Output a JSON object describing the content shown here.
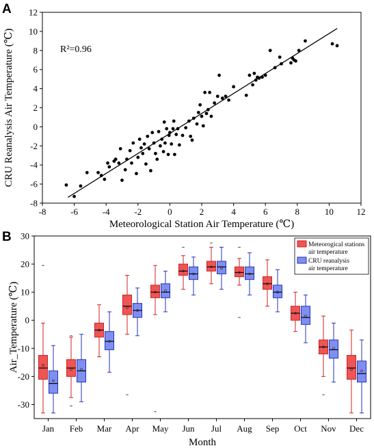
{
  "chart_data": [
    {
      "panel": "A",
      "type": "scatter",
      "title": "",
      "xlabel": "Meteorological Station Air Temperature (℃)",
      "ylabel": "CRU Reanalysis Air Temperature (℃)",
      "xlim": [
        -8,
        12
      ],
      "ylim": [
        -8,
        12
      ],
      "xticks": [
        -8,
        -6,
        -4,
        -2,
        0,
        2,
        4,
        6,
        8,
        10,
        12
      ],
      "yticks": [
        -8,
        -6,
        -4,
        -2,
        0,
        2,
        4,
        6,
        8,
        10,
        12
      ],
      "annotation": "R²=0.96",
      "fit_line": {
        "x": [
          -6.4,
          10.5
        ],
        "y": [
          -7.4,
          10.3
        ]
      },
      "points": [
        [
          -6.5,
          -6.1
        ],
        [
          -6.0,
          -7.3
        ],
        [
          -5.6,
          -6.2
        ],
        [
          -5.2,
          -4.8
        ],
        [
          -4.5,
          -4.8
        ],
        [
          -4.3,
          -5.1
        ],
        [
          -4.1,
          -5.5
        ],
        [
          -3.9,
          -3.8
        ],
        [
          -3.8,
          -4.2
        ],
        [
          -3.5,
          -3.6
        ],
        [
          -3.4,
          -3.4
        ],
        [
          -3.2,
          -3.8
        ],
        [
          -3.1,
          -2.3
        ],
        [
          -3.0,
          -5.6
        ],
        [
          -2.8,
          -4.5
        ],
        [
          -2.7,
          -3.4
        ],
        [
          -2.5,
          -2.5
        ],
        [
          -2.4,
          -3.8
        ],
        [
          -2.3,
          -1.7
        ],
        [
          -2.1,
          -4.9
        ],
        [
          -2.0,
          -3.2
        ],
        [
          -1.9,
          -1.3
        ],
        [
          -1.8,
          -2.2
        ],
        [
          -1.7,
          -2.8
        ],
        [
          -1.6,
          -1.8
        ],
        [
          -1.5,
          -3.9
        ],
        [
          -1.4,
          -1.0
        ],
        [
          -1.3,
          -2.3
        ],
        [
          -1.2,
          -4.6
        ],
        [
          -1.1,
          -0.6
        ],
        [
          -1.0,
          -1.7
        ],
        [
          -0.9,
          -2.8
        ],
        [
          -0.8,
          -3.4
        ],
        [
          -0.7,
          -0.5
        ],
        [
          -0.6,
          -2.0
        ],
        [
          -0.5,
          -1.3
        ],
        [
          -0.4,
          -2.6
        ],
        [
          -0.35,
          0.5
        ],
        [
          -0.3,
          -1.7
        ],
        [
          -0.2,
          -0.2
        ],
        [
          -0.1,
          -2.9
        ],
        [
          -0.05,
          -0.9
        ],
        [
          0.0,
          -0.6
        ],
        [
          0.1,
          -1.8
        ],
        [
          0.2,
          -0.2
        ],
        [
          0.25,
          0.6
        ],
        [
          0.3,
          -2.9
        ],
        [
          0.4,
          -0.8
        ],
        [
          0.5,
          -0.2
        ],
        [
          0.6,
          -1.9
        ],
        [
          0.8,
          -0.9
        ],
        [
          1.0,
          -0.1
        ],
        [
          1.2,
          0.6
        ],
        [
          1.3,
          -1.0
        ],
        [
          1.4,
          -1.4
        ],
        [
          1.5,
          0.9
        ],
        [
          1.7,
          0.3
        ],
        [
          1.8,
          1.5
        ],
        [
          1.9,
          2.3
        ],
        [
          2.0,
          1.1
        ],
        [
          2.1,
          0.1
        ],
        [
          2.2,
          3.6
        ],
        [
          2.3,
          1.4
        ],
        [
          2.4,
          1.8
        ],
        [
          2.5,
          3.6
        ],
        [
          2.6,
          1.1
        ],
        [
          2.8,
          2.5
        ],
        [
          3.0,
          3.2
        ],
        [
          3.1,
          5.4
        ],
        [
          3.3,
          3.0
        ],
        [
          3.5,
          3.2
        ],
        [
          3.7,
          2.8
        ],
        [
          4.0,
          4.2
        ],
        [
          4.8,
          3.3
        ],
        [
          5.0,
          5.4
        ],
        [
          5.2,
          4.4
        ],
        [
          5.3,
          5.6
        ],
        [
          5.4,
          4.9
        ],
        [
          5.5,
          5.2
        ],
        [
          5.6,
          5.1
        ],
        [
          5.8,
          5.2
        ],
        [
          6.0,
          5.4
        ],
        [
          6.3,
          8.0
        ],
        [
          6.6,
          6.2
        ],
        [
          6.9,
          7.3
        ],
        [
          7.0,
          6.6
        ],
        [
          7.6,
          6.7
        ],
        [
          7.7,
          7.2
        ],
        [
          7.8,
          7.0
        ],
        [
          7.9,
          6.9
        ],
        [
          8.1,
          8.0
        ],
        [
          8.5,
          9.0
        ],
        [
          10.2,
          8.7
        ],
        [
          10.5,
          8.5
        ]
      ]
    },
    {
      "panel": "B",
      "type": "box",
      "title": "",
      "xlabel": "Month",
      "ylabel": "Air_Temperature (℃)",
      "ylim": [
        -35,
        30
      ],
      "yticks": [
        -30,
        -20,
        -10,
        0,
        10,
        20,
        30
      ],
      "categories": [
        "Jan",
        "Feb",
        "Mar",
        "Apr",
        "May",
        "Jun",
        "Jul",
        "Aug",
        "Sep",
        "Oct",
        "Nov",
        "Dec"
      ],
      "legend": {
        "position": "top-right"
      },
      "colors": {
        "met": "#ee5555",
        "met_edge": "#cc2222",
        "cru": "#7f8ff0",
        "cru_edge": "#2233bb"
      },
      "series": [
        {
          "name": "Meteorogical stations air temperature",
          "legend_lines": [
            "Meteorogical stations",
            "air temperature"
          ],
          "boxes": [
            {
              "min": -33,
              "q1": -21,
              "median": -17,
              "mean": -16,
              "q3": -12.5,
              "max": -1,
              "outliers": [
                19.5
              ]
            },
            {
              "min": -27.5,
              "q1": -20,
              "median": -17,
              "mean": -17.5,
              "q3": -14,
              "max": -6,
              "outliers": [
                -30.5,
                -5.5
              ]
            },
            {
              "min": -13,
              "q1": -6,
              "median": -3.5,
              "mean": -3.5,
              "q3": -1,
              "max": 5.5,
              "outliers": []
            },
            {
              "min": -5,
              "q1": 2,
              "median": 5,
              "mean": 4.5,
              "q3": 9,
              "max": 16,
              "outliers": [
                -26.5
              ]
            },
            {
              "min": 2,
              "q1": 8,
              "median": 10,
              "mean": 10,
              "q3": 12.5,
              "max": 19.5,
              "outliers": [
                -32.5
              ]
            },
            {
              "min": 11,
              "q1": 16,
              "median": 17.5,
              "mean": 17.5,
              "q3": 20,
              "max": 23,
              "outliers": [
                26
              ]
            },
            {
              "min": 13,
              "q1": 17.5,
              "median": 19,
              "mean": 19,
              "q3": 21,
              "max": 26,
              "outliers": [
                27.5
              ]
            },
            {
              "min": 12.5,
              "q1": 15.5,
              "median": 17,
              "mean": 17,
              "q3": 19,
              "max": 22,
              "outliers": [
                1,
                26
              ]
            },
            {
              "min": 5,
              "q1": 11,
              "median": 13,
              "mean": 13,
              "q3": 15.5,
              "max": 21.5,
              "outliers": []
            },
            {
              "min": -4,
              "q1": 0,
              "median": 2.5,
              "mean": 2.5,
              "q3": 5,
              "max": 10,
              "outliers": []
            },
            {
              "min": -20,
              "q1": -12,
              "median": -9.5,
              "mean": -9.5,
              "q3": -7,
              "max": 1.5,
              "outliers": [
                -26.5
              ]
            },
            {
              "min": -33,
              "q1": -21,
              "median": -17,
              "mean": -17.5,
              "q3": -12.5,
              "max": -3.5,
              "outliers": []
            }
          ]
        },
        {
          "name": "CRU reanalysis air temperature",
          "legend_lines": [
            "CRU reanalysis",
            "air temperature"
          ],
          "boxes": [
            {
              "min": -33,
              "q1": -26,
              "median": -22.5,
              "mean": -21.5,
              "q3": -18,
              "max": -9,
              "outliers": []
            },
            {
              "min": -29,
              "q1": -22,
              "median": -18,
              "mean": -17.5,
              "q3": -14,
              "max": -5,
              "outliers": []
            },
            {
              "min": -18.5,
              "q1": -10.5,
              "median": -7.5,
              "mean": -7.5,
              "q3": -4,
              "max": 3,
              "outliers": []
            },
            {
              "min": -5.5,
              "q1": 1,
              "median": 3.5,
              "mean": 3.5,
              "q3": 6,
              "max": 11.5,
              "outliers": []
            },
            {
              "min": 3,
              "q1": 8,
              "median": 10,
              "mean": 10.5,
              "q3": 13,
              "max": 17.5,
              "outliers": []
            },
            {
              "min": 9,
              "q1": 14.5,
              "median": 16.5,
              "mean": 16.5,
              "q3": 19,
              "max": 22.5,
              "outliers": []
            },
            {
              "min": 11,
              "q1": 16.5,
              "median": 19,
              "mean": 18.5,
              "q3": 21,
              "max": 26,
              "outliers": []
            },
            {
              "min": 9,
              "q1": 14.5,
              "median": 16.5,
              "mean": 16.5,
              "q3": 19,
              "max": 24,
              "outliers": []
            },
            {
              "min": 3,
              "q1": 8,
              "median": 10,
              "mean": 10,
              "q3": 12.5,
              "max": 18,
              "outliers": []
            },
            {
              "min": -8,
              "q1": -1.5,
              "median": 1,
              "mean": 1.5,
              "q3": 5,
              "max": 9,
              "outliers": []
            },
            {
              "min": -22,
              "q1": -13.5,
              "median": -10.5,
              "mean": -10,
              "q3": -7,
              "max": -1,
              "outliers": []
            },
            {
              "min": -33,
              "q1": -22,
              "median": -19,
              "mean": -18,
              "q3": -14.5,
              "max": -7,
              "outliers": []
            }
          ]
        }
      ]
    }
  ]
}
